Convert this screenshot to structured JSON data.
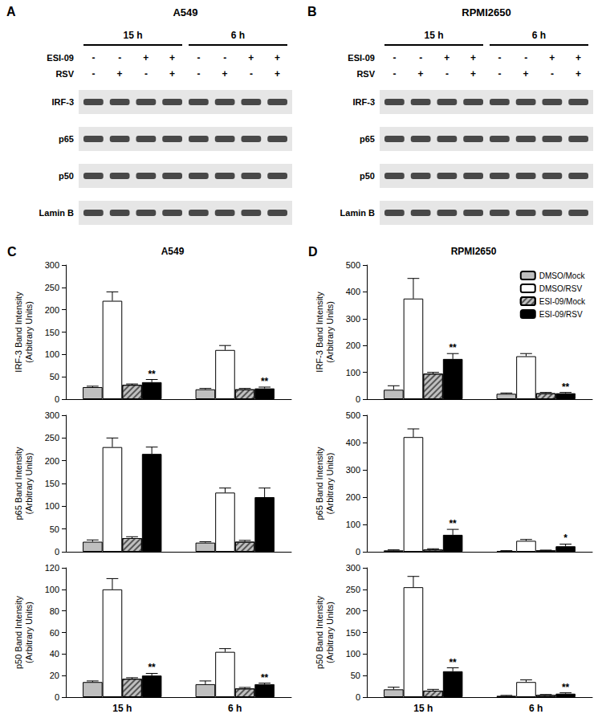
{
  "blots": [
    {
      "panel": "A",
      "title": "A549",
      "times": [
        "15 h",
        "6 h"
      ],
      "treatments": [
        {
          "name": "ESI-09",
          "signs": [
            "-",
            "-",
            "+",
            "+",
            "-",
            "-",
            "+",
            "+"
          ]
        },
        {
          "name": "RSV",
          "signs": [
            "-",
            "+",
            "-",
            "+",
            "-",
            "+",
            "-",
            "+"
          ]
        }
      ],
      "proteins": [
        "IRF-3",
        "p65",
        "p50",
        "Lamin B"
      ]
    },
    {
      "panel": "B",
      "title": "RPMI2650",
      "times": [
        "15 h",
        "6 h"
      ],
      "treatments": [
        {
          "name": "ESI-09",
          "signs": [
            "-",
            "-",
            "+",
            "+",
            "-",
            "-",
            "+",
            "+"
          ]
        },
        {
          "name": "RSV",
          "signs": [
            "-",
            "+",
            "-",
            "+",
            "-",
            "+",
            "-",
            "+"
          ]
        }
      ],
      "proteins": [
        "IRF-3",
        "p65",
        "p50",
        "Lamin B"
      ]
    }
  ],
  "chart_data": [
    {
      "type": "bar",
      "panel_label": "C",
      "title": "A549",
      "ylabel": "IRF-3 Band Intensity\n(Arbitrary Units)",
      "categories": [
        null,
        null
      ],
      "ylim": [
        0,
        300
      ],
      "yticks": [
        0,
        50,
        100,
        150,
        200,
        250,
        300
      ],
      "grid": false,
      "series": [
        {
          "color": "#bfbfbf",
          "values": [
            27,
            22
          ],
          "errors": [
            2,
            2
          ]
        },
        {
          "color": "#ffffff",
          "values": [
            220,
            110
          ],
          "errors": [
            20,
            10
          ]
        },
        {
          "color": "#bfbfbf",
          "marker": "hatched",
          "values": [
            32,
            22
          ],
          "errors": [
            2,
            2
          ]
        },
        {
          "color": "#000000",
          "values": [
            38,
            24
          ],
          "errors": [
            6,
            3
          ],
          "significance": [
            "**",
            "**"
          ]
        }
      ]
    },
    {
      "type": "bar",
      "ylabel": "p65 Band Intensity\n(Arbitrary Units)",
      "categories": [
        null,
        null
      ],
      "ylim": [
        0,
        300
      ],
      "yticks": [
        0,
        50,
        100,
        150,
        200,
        250,
        300
      ],
      "grid": false,
      "series": [
        {
          "color": "#bfbfbf",
          "values": [
            22,
            20
          ],
          "errors": [
            4,
            2
          ]
        },
        {
          "color": "#ffffff",
          "values": [
            230,
            130
          ],
          "errors": [
            20,
            10
          ]
        },
        {
          "color": "#bfbfbf",
          "marker": "hatched",
          "values": [
            30,
            22
          ],
          "errors": [
            3,
            3
          ]
        },
        {
          "color": "#000000",
          "values": [
            215,
            120
          ],
          "errors": [
            15,
            20
          ]
        }
      ]
    },
    {
      "type": "bar",
      "ylabel": "p50 Band Intensity\n(Arbitrary Units)",
      "categories": [
        "15 h",
        "6 h"
      ],
      "ylim": [
        0,
        120
      ],
      "yticks": [
        0,
        20,
        40,
        60,
        80,
        100,
        120
      ],
      "grid": false,
      "series": [
        {
          "color": "#bfbfbf",
          "values": [
            14,
            12
          ],
          "errors": [
            1,
            3
          ]
        },
        {
          "color": "#ffffff",
          "values": [
            100,
            42
          ],
          "errors": [
            10,
            3
          ]
        },
        {
          "color": "#bfbfbf",
          "marker": "hatched",
          "values": [
            17,
            8
          ],
          "errors": [
            1,
            1
          ]
        },
        {
          "color": "#000000",
          "values": [
            20,
            12
          ],
          "errors": [
            2,
            1
          ],
          "significance": [
            "**",
            "**"
          ]
        }
      ]
    },
    {
      "type": "bar",
      "panel_label": "D",
      "title": "RPMI2650",
      "ylabel": "IRF-3 Band Intensity\n(Arbitrary Units)",
      "categories": [
        null,
        null
      ],
      "ylim": [
        0,
        500
      ],
      "yticks": [
        0,
        100,
        200,
        300,
        400,
        500
      ],
      "grid": false,
      "legend": "upper right",
      "series": [
        {
          "name": "DMSO/Mock",
          "color": "#bfbfbf",
          "values": [
            35,
            20
          ],
          "errors": [
            15,
            3
          ]
        },
        {
          "name": "DMSO/RSV",
          "color": "#ffffff",
          "values": [
            375,
            160
          ],
          "errors": [
            75,
            10
          ]
        },
        {
          "name": "ESI-09/Mock",
          "color": "#bfbfbf",
          "marker": "hatched",
          "values": [
            95,
            22
          ],
          "errors": [
            5,
            3
          ]
        },
        {
          "name": "ESI-09/RSV",
          "color": "#000000",
          "values": [
            150,
            22
          ],
          "errors": [
            20,
            3
          ],
          "significance": [
            "**",
            "**"
          ]
        }
      ]
    },
    {
      "type": "bar",
      "ylabel": "p65 Band Intensity\n(Arbitrary Units)",
      "categories": [
        null,
        null
      ],
      "ylim": [
        0,
        500
      ],
      "yticks": [
        0,
        100,
        200,
        300,
        400,
        500
      ],
      "grid": false,
      "series": [
        {
          "color": "#bfbfbf",
          "values": [
            5,
            3
          ],
          "errors": [
            2,
            1
          ]
        },
        {
          "color": "#ffffff",
          "values": [
            420,
            40
          ],
          "errors": [
            30,
            5
          ]
        },
        {
          "color": "#bfbfbf",
          "marker": "hatched",
          "values": [
            8,
            5
          ],
          "errors": [
            3,
            1
          ]
        },
        {
          "color": "#000000",
          "values": [
            62,
            20
          ],
          "errors": [
            20,
            8
          ],
          "significance": [
            "**",
            "*"
          ]
        }
      ]
    },
    {
      "type": "bar",
      "ylabel": "p50 Band Intensity\n(Arbitrary Units)",
      "categories": [
        "15 h",
        "6 h"
      ],
      "ylim": [
        0,
        300
      ],
      "yticks": [
        0,
        50,
        100,
        150,
        200,
        250,
        300
      ],
      "grid": false,
      "series": [
        {
          "color": "#bfbfbf",
          "values": [
            18,
            3
          ],
          "errors": [
            5,
            1
          ]
        },
        {
          "color": "#ffffff",
          "values": [
            255,
            35
          ],
          "errors": [
            25,
            5
          ]
        },
        {
          "color": "#bfbfbf",
          "marker": "hatched",
          "values": [
            15,
            5
          ],
          "errors": [
            3,
            1
          ]
        },
        {
          "color": "#000000",
          "values": [
            60,
            8
          ],
          "errors": [
            8,
            2
          ],
          "significance": [
            "**",
            "**"
          ]
        }
      ]
    }
  ]
}
